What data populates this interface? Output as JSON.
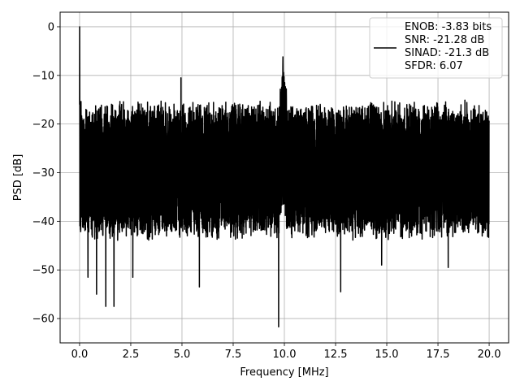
{
  "chart_data": {
    "type": "line",
    "xlabel": "Frequency [MHz]",
    "ylabel": "PSD [dB]",
    "xlim": [
      -0.95,
      20.95
    ],
    "ylim": [
      -65,
      3
    ],
    "xticks": [
      0.0,
      2.5,
      5.0,
      7.5,
      10.0,
      12.5,
      15.0,
      17.5,
      20.0
    ],
    "xtick_labels": [
      "0.0",
      "2.5",
      "5.0",
      "7.5",
      "10.0",
      "12.5",
      "15.0",
      "17.5",
      "20.0"
    ],
    "yticks": [
      0,
      -10,
      -20,
      -30,
      -40,
      -50,
      -60
    ],
    "ytick_labels": [
      "0",
      "−10",
      "−20",
      "−30",
      "−40",
      "−50",
      "−60"
    ],
    "grid": true,
    "legend_position": "top-right",
    "series": [
      {
        "color": "#000000",
        "legend_lines": [
          "ENOB: -3.83 bits",
          "SNR: -21.28 dB",
          "SINAD: -21.3 dB",
          "SFDR: 6.07"
        ],
        "x_range": [
          0,
          20
        ],
        "noise_band_dB": [
          -40,
          -17
        ],
        "peaks": [
          {
            "x": 0.0,
            "y": 0.0
          },
          {
            "x": 4.95,
            "y": -10.5
          },
          {
            "x": 9.93,
            "y": -6.2
          },
          {
            "x": 9.72,
            "y": -61.7
          },
          {
            "x": 1.28,
            "y": -57.5
          },
          {
            "x": 1.68,
            "y": -57.5
          },
          {
            "x": 0.83,
            "y": -55.0
          },
          {
            "x": 5.85,
            "y": -53.5
          },
          {
            "x": 12.75,
            "y": -54.5
          },
          {
            "x": 0.41,
            "y": -51.5
          },
          {
            "x": 2.6,
            "y": -51.5
          },
          {
            "x": 14.75,
            "y": -49.0
          },
          {
            "x": 18.0,
            "y": -49.5
          }
        ]
      }
    ]
  }
}
